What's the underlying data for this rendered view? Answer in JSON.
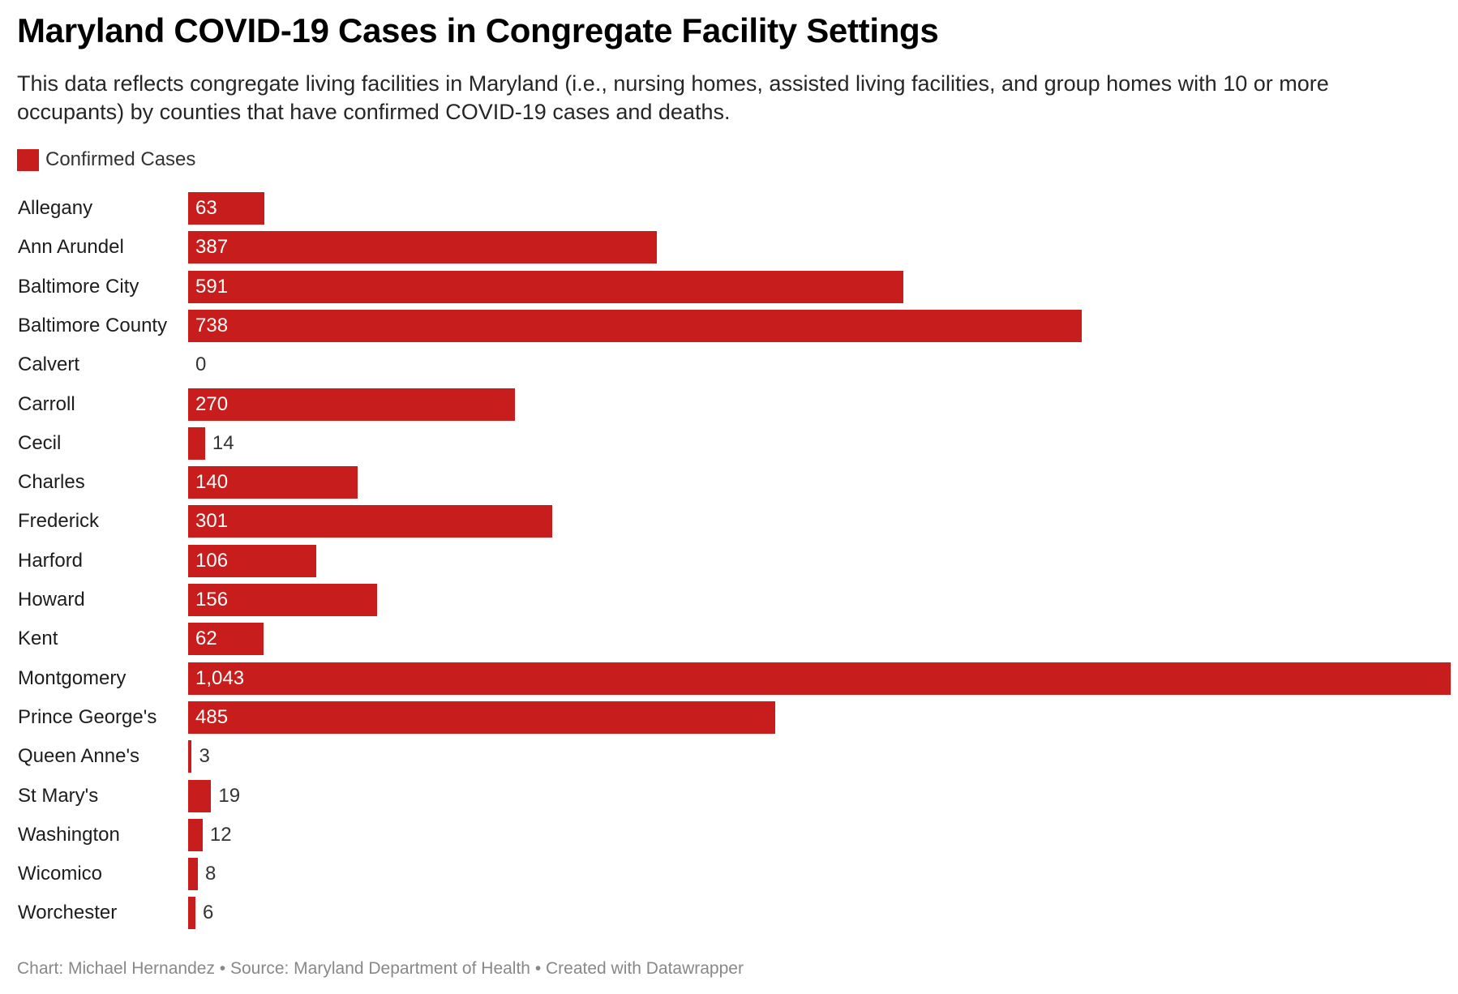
{
  "chart_data": {
    "type": "bar",
    "orientation": "horizontal",
    "title": "Maryland COVID-19 Cases in Congregate Facility Settings",
    "subtitle": "This data reflects congregate living facilities in Maryland (i.e., nursing homes, assisted living facilities, and group homes with 10 or more occupants) by counties that have confirmed COVID-19 cases and deaths.",
    "legend_position": "top-left",
    "grid": false,
    "xlim": [
      0,
      1043
    ],
    "categories": [
      "Allegany",
      "Ann Arundel",
      "Baltimore City",
      "Baltimore County",
      "Calvert",
      "Carroll",
      "Cecil",
      "Charles",
      "Frederick",
      "Harford",
      "Howard",
      "Kent",
      "Montgomery",
      "Prince George's",
      "Queen Anne's",
      "St Mary's",
      "Washington",
      "Wicomico",
      "Worchester"
    ],
    "series": [
      {
        "name": "Confirmed Cases",
        "color": "#c71e1d",
        "values": [
          63,
          387,
          591,
          738,
          0,
          270,
          14,
          140,
          301,
          106,
          156,
          62,
          1043,
          485,
          3,
          19,
          12,
          8,
          6
        ],
        "value_labels": [
          "63",
          "387",
          "591",
          "738",
          "0",
          "270",
          "14",
          "140",
          "301",
          "106",
          "156",
          "62",
          "1,043",
          "485",
          "3",
          "19",
          "12",
          "8",
          "6"
        ]
      }
    ]
  },
  "footer": {
    "text": "Chart: Michael Hernandez • Source: Maryland Department of Health • Created with Datawrapper"
  }
}
